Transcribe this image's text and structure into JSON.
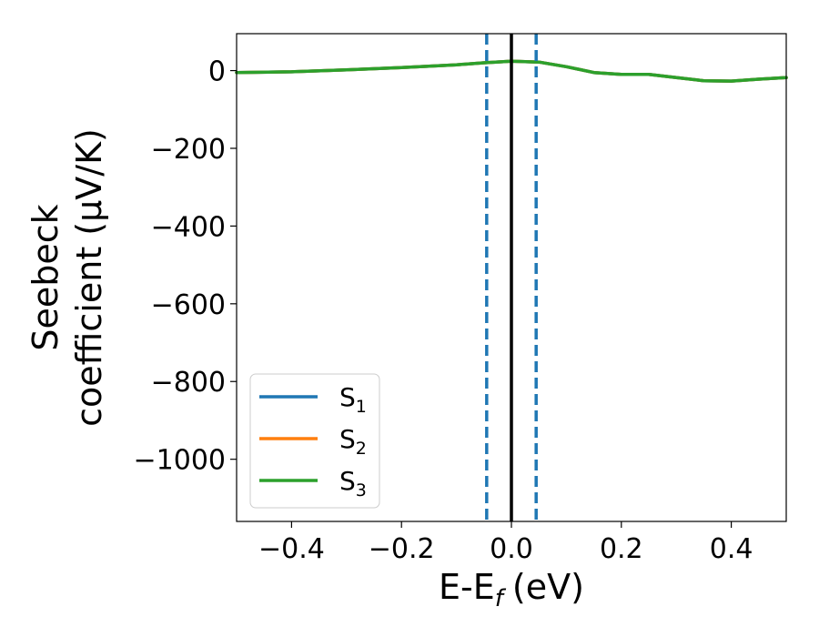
{
  "chart_data": {
    "type": "line",
    "xlabel": "E-E",
    "xlabel_sub": "f",
    "xlabel_unit": "(eV)",
    "ylabel_line1": "Seebeck",
    "ylabel_line2": "coefficient  (μV/K)",
    "xlim": [
      -0.5,
      0.5
    ],
    "ylim": [
      -1160,
      95
    ],
    "xticks": [
      -0.4,
      -0.2,
      0.0,
      0.2,
      0.4
    ],
    "xtick_labels": [
      "−0.4",
      "−0.2",
      "0.0",
      "0.2",
      "0.4"
    ],
    "yticks": [
      0,
      -200,
      -400,
      -600,
      -800,
      -1000
    ],
    "ytick_labels": [
      "0",
      "−200",
      "−400",
      "−600",
      "−800",
      "−1000"
    ],
    "grid": false,
    "legend_position": "lower-left",
    "series": [
      {
        "name": "S",
        "sub": "1",
        "color": "#1f77b4",
        "x": [
          -0.5,
          -0.4,
          -0.3,
          -0.2,
          -0.1,
          -0.05,
          0.0,
          0.05,
          0.1,
          0.15,
          0.2,
          0.25,
          0.3,
          0.35,
          0.4,
          0.45,
          0.5
        ],
        "values": [
          -5,
          -3,
          2,
          8,
          15,
          20,
          24,
          22,
          10,
          -5,
          -10,
          -10,
          -18,
          -26,
          -27,
          -22,
          -18
        ]
      },
      {
        "name": "S",
        "sub": "2",
        "color": "#ff7f0e",
        "x": [
          -0.5,
          -0.4,
          -0.3,
          -0.2,
          -0.1,
          -0.05,
          0.0,
          0.05,
          0.1,
          0.15,
          0.2,
          0.25,
          0.3,
          0.35,
          0.4,
          0.45,
          0.5
        ],
        "values": [
          -5,
          -3,
          2,
          8,
          15,
          20,
          24,
          22,
          10,
          -5,
          -10,
          -10,
          -18,
          -26,
          -27,
          -22,
          -18
        ]
      },
      {
        "name": "S",
        "sub": "3",
        "color": "#2ca02c",
        "x": [
          -0.5,
          -0.4,
          -0.3,
          -0.2,
          -0.1,
          -0.05,
          0.0,
          0.05,
          0.1,
          0.15,
          0.2,
          0.25,
          0.3,
          0.35,
          0.4,
          0.45,
          0.5
        ],
        "values": [
          -5,
          -3,
          2,
          8,
          15,
          20,
          24,
          22,
          10,
          -5,
          -10,
          -10,
          -18,
          -26,
          -27,
          -22,
          -18
        ]
      }
    ],
    "vlines": [
      {
        "x": -0.045,
        "style": "dashed",
        "color": "#1f77b4"
      },
      {
        "x": 0.0,
        "style": "solid",
        "color": "#000000"
      },
      {
        "x": 0.045,
        "style": "dashed",
        "color": "#1f77b4"
      }
    ]
  }
}
